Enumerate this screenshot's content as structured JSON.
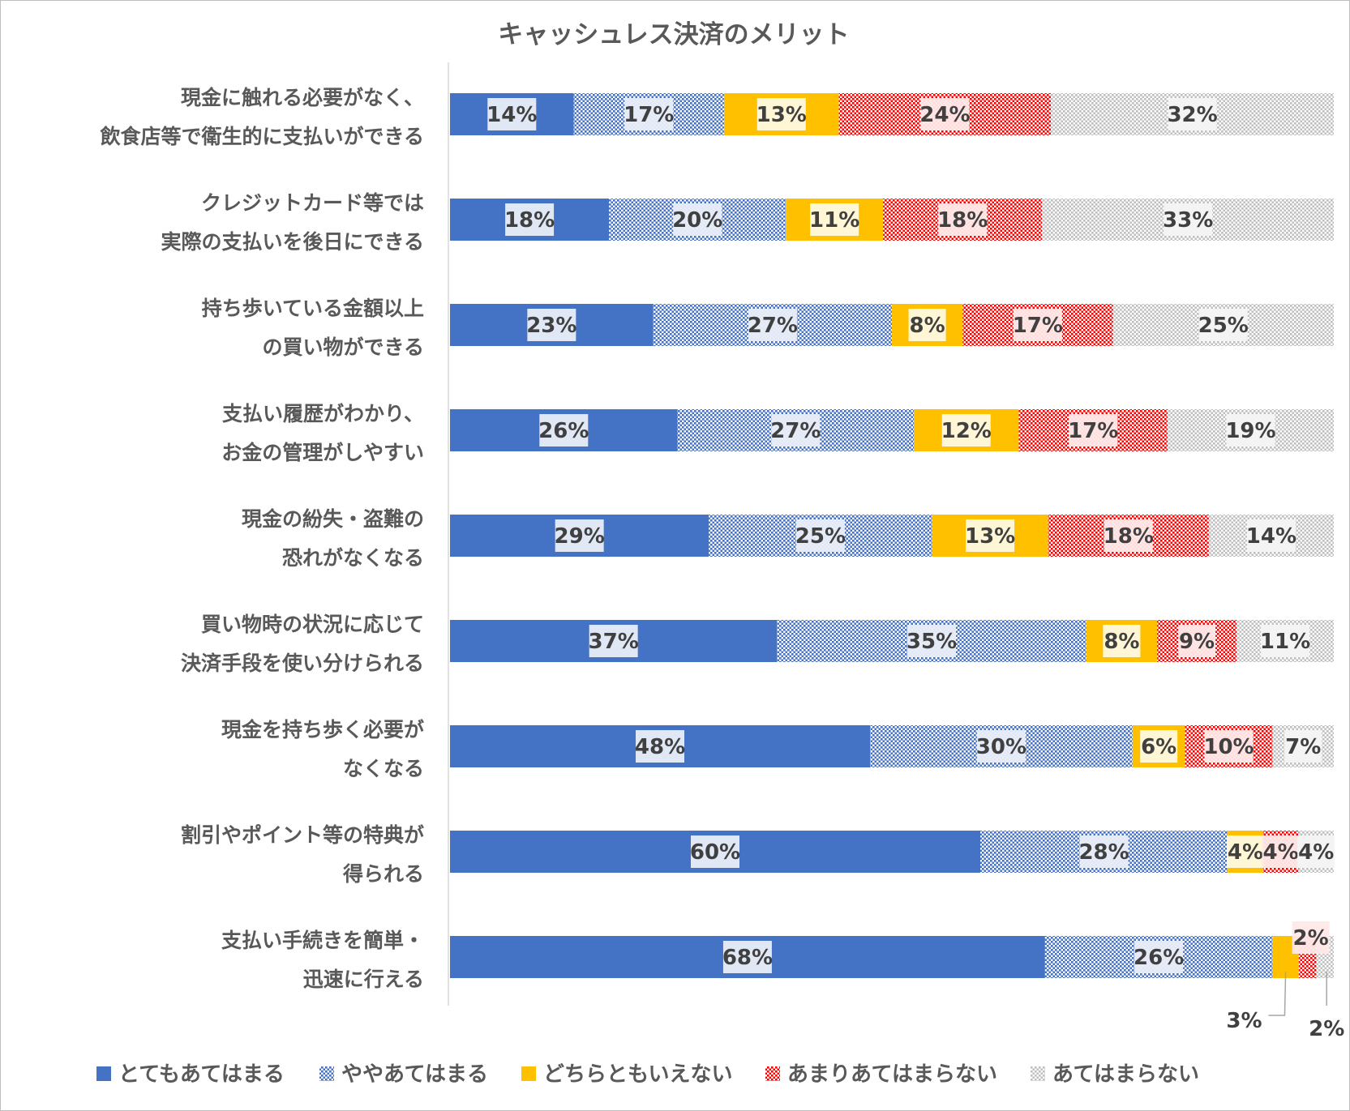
{
  "chart_data": {
    "type": "bar",
    "orientation": "horizontal",
    "stacked": "percent",
    "title": "キャッシュレス決済のメリット",
    "categories": [
      [
        "現金に触れる必要がなく、",
        "飲食店等で衛生的に支払いができる"
      ],
      [
        "クレジットカード等では",
        "実際の支払いを後日にできる"
      ],
      [
        "持ち歩いている金額以上",
        "の買い物ができる"
      ],
      [
        "支払い履歴がわかり、",
        "お金の管理がしやすい"
      ],
      [
        "現金の紛失・盗難の",
        "恐れがなくなる"
      ],
      [
        "買い物時の状況に応じて",
        "決済手段を使い分けられる"
      ],
      [
        "現金を持ち歩く必要が",
        "なくなる"
      ],
      [
        "割引やポイント等の特典が",
        "得られる"
      ],
      [
        "支払い手続きを簡単・",
        "迅速に行える"
      ]
    ],
    "series": [
      {
        "name": "とてもあてはまる",
        "color": "#4472C4",
        "pattern": "solid",
        "values": [
          14,
          18,
          23,
          26,
          29,
          37,
          48,
          60,
          68
        ]
      },
      {
        "name": "ややあてはまる",
        "color": "#4472C4",
        "pattern": "dots",
        "values": [
          17,
          20,
          27,
          27,
          25,
          35,
          30,
          28,
          26
        ]
      },
      {
        "name": "どちらともいえない",
        "color": "#FFC000",
        "pattern": "solid",
        "values": [
          13,
          11,
          8,
          12,
          13,
          8,
          6,
          4,
          3
        ]
      },
      {
        "name": "あまりあてはまらない",
        "color": "#FF0000",
        "pattern": "dots",
        "values": [
          24,
          18,
          17,
          17,
          18,
          9,
          10,
          4,
          2
        ]
      },
      {
        "name": "あてはまらない",
        "color": "#BFBFBF",
        "pattern": "dots",
        "values": [
          32,
          33,
          25,
          19,
          14,
          11,
          7,
          4,
          2
        ]
      }
    ],
    "value_suffix": "%",
    "legend_position": "bottom",
    "grid": false
  }
}
